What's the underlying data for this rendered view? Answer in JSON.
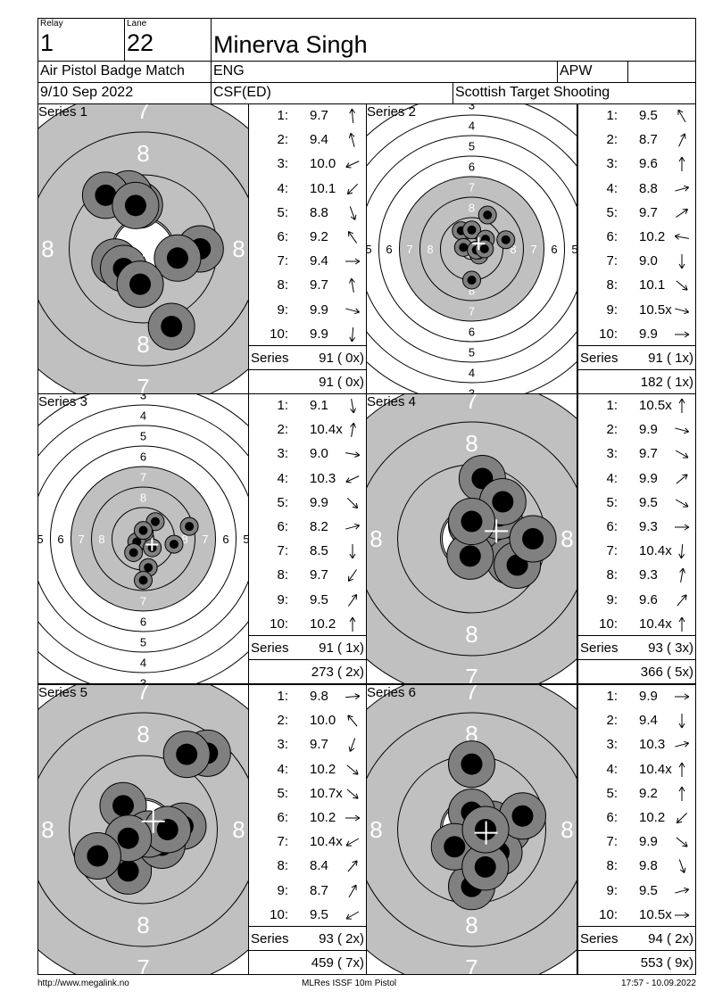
{
  "header": {
    "relay_label": "Relay",
    "relay": "1",
    "lane_label": "Lane",
    "lane": "22",
    "name": "Minerva Singh",
    "match": "Air Pistol Badge Match",
    "country": "ENG",
    "class": "APW",
    "class_extra": "",
    "date": "9/10 Sep 2022",
    "club": "CSF(ED)",
    "organiser": "Scottish Target Shooting"
  },
  "colors": {
    "target_black": "#c0c0c0",
    "shot": "#808080",
    "shot_core": "#000000",
    "cross": "#ffffff"
  },
  "series": [
    {
      "title": "Series 1",
      "target": "zoomed",
      "series_label": "Series",
      "series_total": "91 ( 0x)",
      "running_total": "91 ( 0x)",
      "shots": [
        {
          "n": "1:",
          "score": "9.7",
          "dir": 95
        },
        {
          "n": "2:",
          "score": "9.4",
          "dir": 105
        },
        {
          "n": "3:",
          "score": "10.0",
          "dir": 205
        },
        {
          "n": "4:",
          "score": "10.1",
          "dir": 225
        },
        {
          "n": "5:",
          "score": "8.8",
          "dir": 290
        },
        {
          "n": "6:",
          "score": "9.2",
          "dir": 125
        },
        {
          "n": "7:",
          "score": "9.4",
          "dir": 0
        },
        {
          "n": "8:",
          "score": "9.7",
          "dir": 100
        },
        {
          "n": "9:",
          "score": "9.9",
          "dir": 345
        },
        {
          "n": "10:",
          "score": "9.9",
          "dir": 265
        }
      ]
    },
    {
      "title": "Series 2",
      "target": "normal",
      "series_label": "Series",
      "series_total": "91 ( 1x)",
      "running_total": "182 ( 1x)",
      "shots": [
        {
          "n": "1:",
          "score": "9.5",
          "dir": 120
        },
        {
          "n": "2:",
          "score": "8.7",
          "dir": 65
        },
        {
          "n": "3:",
          "score": "9.6",
          "dir": 90
        },
        {
          "n": "4:",
          "score": "8.8",
          "dir": 15
        },
        {
          "n": "5:",
          "score": "9.7",
          "dir": 35
        },
        {
          "n": "6:",
          "score": "10.2",
          "dir": 170
        },
        {
          "n": "7:",
          "score": "9.0",
          "dir": 270
        },
        {
          "n": "8:",
          "score": "10.1",
          "dir": 320
        },
        {
          "n": "9:",
          "score": "10.5x",
          "dir": 345
        },
        {
          "n": "10:",
          "score": "9.9",
          "dir": 0
        }
      ]
    },
    {
      "title": "Series 3",
      "target": "normal",
      "series_label": "Series",
      "series_total": "91 ( 1x)",
      "running_total": "273 ( 2x)",
      "shots": [
        {
          "n": "1:",
          "score": "9.1",
          "dir": 280
        },
        {
          "n": "2:",
          "score": "10.4x",
          "dir": 80
        },
        {
          "n": "3:",
          "score": "9.0",
          "dir": 350
        },
        {
          "n": "4:",
          "score": "10.3",
          "dir": 205
        },
        {
          "n": "5:",
          "score": "9.9",
          "dir": 315
        },
        {
          "n": "6:",
          "score": "8.2",
          "dir": 15
        },
        {
          "n": "7:",
          "score": "8.5",
          "dir": 270
        },
        {
          "n": "8:",
          "score": "9.7",
          "dir": 235
        },
        {
          "n": "9:",
          "score": "9.5",
          "dir": 55
        },
        {
          "n": "10:",
          "score": "10.2",
          "dir": 90
        }
      ]
    },
    {
      "title": "Series 4",
      "target": "zoomed",
      "series_label": "Series",
      "series_total": "93 ( 3x)",
      "running_total": "366 ( 5x)",
      "shots": [
        {
          "n": "1:",
          "score": "10.5x",
          "dir": 90
        },
        {
          "n": "2:",
          "score": "9.9",
          "dir": 345
        },
        {
          "n": "3:",
          "score": "9.7",
          "dir": 330
        },
        {
          "n": "4:",
          "score": "9.9",
          "dir": 40
        },
        {
          "n": "5:",
          "score": "9.5",
          "dir": 330
        },
        {
          "n": "6:",
          "score": "9.3",
          "dir": 0
        },
        {
          "n": "7:",
          "score": "10.4x",
          "dir": 265
        },
        {
          "n": "8:",
          "score": "9.3",
          "dir": 80
        },
        {
          "n": "9:",
          "score": "9.6",
          "dir": 50
        },
        {
          "n": "10:",
          "score": "10.4x",
          "dir": 90
        }
      ]
    },
    {
      "title": "Series 5",
      "target": "zoomed",
      "series_label": "Series",
      "series_total": "93 ( 2x)",
      "running_total": "459 ( 7x)",
      "shots": [
        {
          "n": "1:",
          "score": "9.8",
          "dir": 5
        },
        {
          "n": "2:",
          "score": "10.0",
          "dir": 130
        },
        {
          "n": "3:",
          "score": "9.7",
          "dir": 250
        },
        {
          "n": "4:",
          "score": "10.2",
          "dir": 320
        },
        {
          "n": "5:",
          "score": "10.7x",
          "dir": 320
        },
        {
          "n": "6:",
          "score": "10.2",
          "dir": 0
        },
        {
          "n": "7:",
          "score": "10.4x",
          "dir": 210
        },
        {
          "n": "8:",
          "score": "8.4",
          "dir": 50
        },
        {
          "n": "9:",
          "score": "8.7",
          "dir": 60
        },
        {
          "n": "10:",
          "score": "9.5",
          "dir": 210
        }
      ]
    },
    {
      "title": "Series 6",
      "target": "zoomed",
      "series_label": "Series",
      "series_total": "94 ( 2x)",
      "running_total": "553 ( 9x)",
      "shots": [
        {
          "n": "1:",
          "score": "9.9",
          "dir": 0
        },
        {
          "n": "2:",
          "score": "9.4",
          "dir": 270
        },
        {
          "n": "3:",
          "score": "10.3",
          "dir": 15
        },
        {
          "n": "4:",
          "score": "10.4x",
          "dir": 90
        },
        {
          "n": "5:",
          "score": "9.2",
          "dir": 90
        },
        {
          "n": "6:",
          "score": "10.2",
          "dir": 225
        },
        {
          "n": "7:",
          "score": "9.9",
          "dir": 320
        },
        {
          "n": "8:",
          "score": "9.8",
          "dir": 290
        },
        {
          "n": "9:",
          "score": "9.5",
          "dir": 15
        },
        {
          "n": "10:",
          "score": "10.5x",
          "dir": 0
        }
      ]
    }
  ],
  "footer": {
    "url": "http://www.megalink.no",
    "software": "MLRes ISSF 10m Pistol",
    "timestamp": "17:57 - 10.09.2022"
  }
}
